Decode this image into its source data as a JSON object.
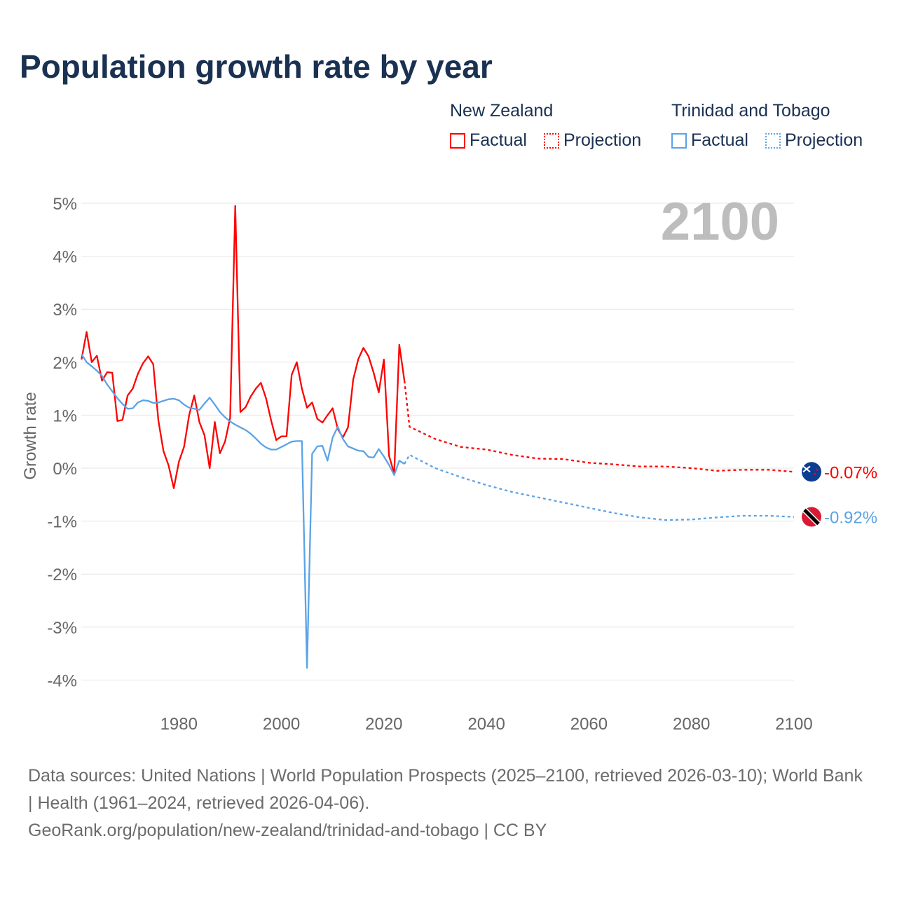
{
  "chart_data": {
    "type": "line",
    "title": "Population growth rate by year",
    "ylabel": "Growth rate",
    "xlabel": "",
    "xlim": [
      1961,
      2100
    ],
    "ylim": [
      -4,
      5
    ],
    "xticks": [
      "1980",
      "2000",
      "2020",
      "2040",
      "2060",
      "2080",
      "2100"
    ],
    "xtick_values": [
      1980,
      2000,
      2020,
      2040,
      2060,
      2080,
      2100
    ],
    "yticks": [
      "5%",
      "4%",
      "3%",
      "2%",
      "1%",
      "0%",
      "-1%",
      "-2%",
      "-3%",
      "-4%"
    ],
    "ytick_values": [
      5,
      4,
      3,
      2,
      1,
      0,
      -1,
      -2,
      -3,
      -4
    ],
    "year_label": "2100",
    "legend": {
      "placement": "top-right",
      "groups": [
        {
          "name": "New Zealand",
          "factual": "Factual",
          "projection": "Projection",
          "color": "#ff0000"
        },
        {
          "name": "Trinidad and Tobago",
          "factual": "Factual",
          "projection": "Projection",
          "color": "#5ba3e6"
        }
      ]
    },
    "series": [
      {
        "name": "New Zealand",
        "color": "#ff0000",
        "end_label": "-0.07%",
        "flag": "new-zealand",
        "factual": {
          "x": [
            1961,
            1962,
            1963,
            1964,
            1965,
            1966,
            1967,
            1968,
            1969,
            1970,
            1971,
            1972,
            1973,
            1974,
            1975,
            1976,
            1977,
            1978,
            1979,
            1980,
            1981,
            1982,
            1983,
            1984,
            1985,
            1986,
            1987,
            1988,
            1989,
            1990,
            1991,
            1992,
            1993,
            1994,
            1995,
            1996,
            1997,
            1998,
            1999,
            2000,
            2001,
            2002,
            2003,
            2004,
            2005,
            2006,
            2007,
            2008,
            2009,
            2010,
            2011,
            2012,
            2013,
            2014,
            2015,
            2016,
            2017,
            2018,
            2019,
            2020,
            2021,
            2022,
            2023,
            2024
          ],
          "y": [
            2.05,
            2.57,
            2.0,
            2.12,
            1.65,
            1.81,
            1.8,
            0.89,
            0.91,
            1.37,
            1.5,
            1.78,
            1.98,
            2.11,
            1.96,
            0.9,
            0.32,
            0.05,
            -0.38,
            0.12,
            0.4,
            1.0,
            1.37,
            0.87,
            0.62,
            0.0,
            0.87,
            0.28,
            0.5,
            0.95,
            4.95,
            1.06,
            1.15,
            1.35,
            1.5,
            1.61,
            1.32,
            0.9,
            0.53,
            0.6,
            0.6,
            1.76,
            2.0,
            1.5,
            1.14,
            1.24,
            0.93,
            0.86,
            1.0,
            1.13,
            0.74,
            0.58,
            0.77,
            1.67,
            2.06,
            2.27,
            2.11,
            1.8,
            1.43,
            2.05,
            0.23,
            -0.1,
            2.33,
            1.65
          ]
        },
        "projection": {
          "x": [
            2024,
            2025,
            2030,
            2035,
            2040,
            2045,
            2050,
            2055,
            2060,
            2065,
            2070,
            2075,
            2080,
            2085,
            2090,
            2095,
            2100
          ],
          "y": [
            1.65,
            0.78,
            0.55,
            0.4,
            0.35,
            0.25,
            0.18,
            0.17,
            0.1,
            0.07,
            0.03,
            0.03,
            0.0,
            -0.05,
            -0.03,
            -0.03,
            -0.07
          ]
        }
      },
      {
        "name": "Trinidad and Tobago",
        "color": "#5ba3e6",
        "end_label": "-0.92%",
        "flag": "trinidad-and-tobago",
        "factual": {
          "x": [
            1961,
            1962,
            1963,
            1964,
            1965,
            1966,
            1967,
            1968,
            1969,
            1970,
            1971,
            1972,
            1973,
            1974,
            1975,
            1976,
            1977,
            1978,
            1979,
            1980,
            1981,
            1982,
            1983,
            1984,
            1985,
            1986,
            1987,
            1988,
            1989,
            1990,
            1991,
            1992,
            1993,
            1994,
            1995,
            1996,
            1997,
            1998,
            1999,
            2000,
            2001,
            2002,
            2003,
            2004,
            2005,
            2006,
            2007,
            2008,
            2009,
            2010,
            2011,
            2012,
            2013,
            2014,
            2015,
            2016,
            2017,
            2018,
            2019,
            2020,
            2021,
            2022,
            2023,
            2024
          ],
          "y": [
            2.15,
            2.0,
            1.92,
            1.84,
            1.74,
            1.58,
            1.45,
            1.32,
            1.21,
            1.12,
            1.13,
            1.24,
            1.28,
            1.27,
            1.23,
            1.24,
            1.27,
            1.3,
            1.31,
            1.28,
            1.2,
            1.14,
            1.12,
            1.1,
            1.22,
            1.33,
            1.2,
            1.06,
            0.96,
            0.88,
            0.82,
            0.77,
            0.72,
            0.65,
            0.56,
            0.46,
            0.39,
            0.35,
            0.35,
            0.4,
            0.45,
            0.5,
            0.51,
            0.51,
            -3.77,
            0.27,
            0.41,
            0.42,
            0.14,
            0.58,
            0.78,
            0.55,
            0.41,
            0.37,
            0.33,
            0.32,
            0.21,
            0.2,
            0.36,
            0.22,
            0.06,
            -0.13,
            0.14,
            0.08
          ]
        },
        "projection": {
          "x": [
            2024,
            2025,
            2030,
            2035,
            2040,
            2045,
            2050,
            2055,
            2060,
            2065,
            2070,
            2075,
            2080,
            2085,
            2090,
            2095,
            2100
          ],
          "y": [
            0.08,
            0.25,
            0.0,
            -0.17,
            -0.32,
            -0.45,
            -0.55,
            -0.65,
            -0.75,
            -0.85,
            -0.93,
            -0.98,
            -0.97,
            -0.93,
            -0.9,
            -0.9,
            -0.92
          ]
        }
      }
    ]
  },
  "footer": {
    "sources": "Data sources: United Nations | World Population Prospects (2025–2100, retrieved 2026-03-10); World Bank | Health (1961–2024, retrieved 2026-04-06).",
    "link": "GeoRank.org/population/new-zealand/trinidad-and-tobago | CC BY"
  }
}
